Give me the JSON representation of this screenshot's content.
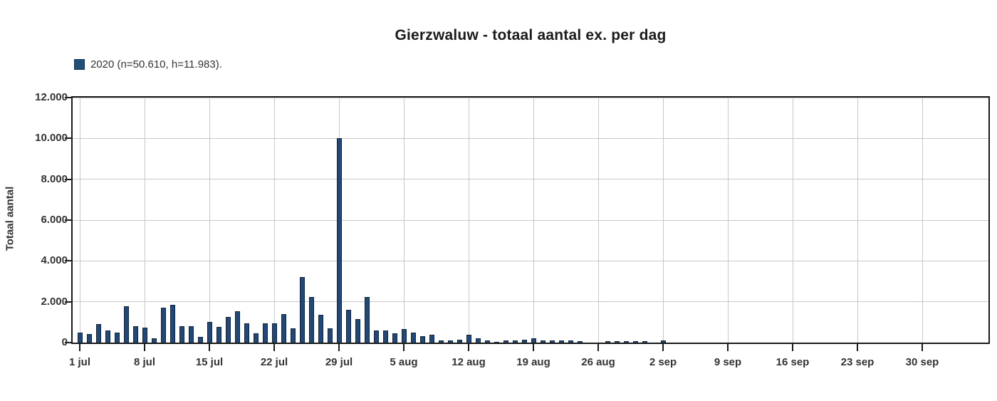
{
  "chart_data": {
    "type": "bar",
    "title": "Gierzwaluw - totaal aantal ex. per dag",
    "legend": {
      "label": "2020 (n=50.610, h=11.983)."
    },
    "ylabel": "Totaal aantal",
    "xlabel": "",
    "ylim": [
      0,
      12000
    ],
    "ytick_step": 2000,
    "ytick_labels": [
      "0",
      "2.000",
      "4.000",
      "6.000",
      "8.000",
      "10.000",
      "12.000"
    ],
    "grid": true,
    "legend_position": "top-left",
    "x_unit": "day",
    "x_days": 92,
    "x_start": "1 jul",
    "x_end": "30 sep",
    "xticks": [
      {
        "day": 0,
        "label": "1 jul"
      },
      {
        "day": 7,
        "label": "8 jul"
      },
      {
        "day": 14,
        "label": "15 jul"
      },
      {
        "day": 21,
        "label": "22 jul"
      },
      {
        "day": 28,
        "label": "29 jul"
      },
      {
        "day": 35,
        "label": "5 aug"
      },
      {
        "day": 42,
        "label": "12 aug"
      },
      {
        "day": 49,
        "label": "19 aug"
      },
      {
        "day": 56,
        "label": "26 aug"
      },
      {
        "day": 63,
        "label": "2 sep"
      },
      {
        "day": 70,
        "label": "9 sep"
      },
      {
        "day": 77,
        "label": "16 sep"
      },
      {
        "day": 84,
        "label": "23 sep"
      },
      {
        "day": 91,
        "label": "30 sep"
      }
    ],
    "series": [
      {
        "name": "2020",
        "n": "50.610",
        "h": "11.983",
        "values": [
          500,
          420,
          910,
          610,
          500,
          1780,
          810,
          720,
          200,
          1720,
          1860,
          820,
          820,
          270,
          1010,
          770,
          1270,
          1550,
          950,
          450,
          950,
          950,
          1400,
          700,
          3200,
          2250,
          1350,
          700,
          10000,
          1600,
          1150,
          2250,
          600,
          600,
          450,
          650,
          500,
          300,
          400,
          100,
          100,
          150,
          400,
          200,
          100,
          50,
          100,
          100,
          150,
          200,
          100,
          100,
          100,
          100,
          80,
          0,
          0,
          80,
          80,
          80,
          60,
          60,
          0,
          120,
          0,
          0,
          0,
          0,
          0,
          0,
          0,
          0,
          0,
          0,
          0,
          0,
          0,
          0,
          0,
          0,
          0,
          0,
          0,
          0,
          0,
          0,
          0,
          0,
          0,
          0,
          0,
          0
        ]
      }
    ],
    "colors": {
      "bar_fill": "#20497a",
      "bar_border": "#10233c",
      "grid": "#c8c8c8",
      "axis": "#1a1a1a",
      "text": "#333333",
      "title": "#1b1b1b",
      "legend_swatch": "#1f4e79"
    }
  }
}
